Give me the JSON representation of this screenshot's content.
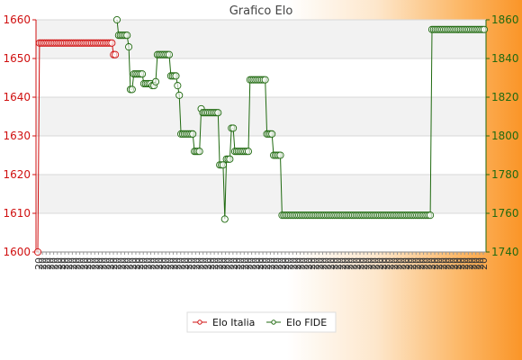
{
  "chart_data": {
    "type": "line",
    "title": "Grafico Elo",
    "xlabel": "",
    "ylabel": "",
    "left_axis": {
      "min": 1600,
      "max": 1660,
      "ticks": [
        1600,
        1610,
        1620,
        1630,
        1640,
        1650,
        1660
      ],
      "color": "#d01010"
    },
    "right_axis": {
      "min": 1740,
      "max": 1860,
      "ticks": [
        1740,
        1760,
        1780,
        1800,
        1820,
        1840,
        1860
      ],
      "color": "#206a10"
    },
    "x_count": 120,
    "x_label_prefix": "20",
    "grid": true,
    "legend": "bottom-center",
    "series": [
      {
        "name": "Elo Italia",
        "axis": "left",
        "color": "#d01010",
        "points": [
          [
            0,
            1600
          ],
          [
            1,
            1654
          ],
          [
            2,
            1654
          ],
          [
            3,
            1654
          ],
          [
            4,
            1654
          ],
          [
            5,
            1654
          ],
          [
            6,
            1654
          ],
          [
            7,
            1654
          ],
          [
            8,
            1654
          ],
          [
            9,
            1654
          ],
          [
            10,
            1654
          ],
          [
            11,
            1654
          ],
          [
            12,
            1654
          ],
          [
            13,
            1654
          ],
          [
            14,
            1654
          ],
          [
            15,
            1654
          ],
          [
            16,
            1654
          ],
          [
            17,
            1654
          ],
          [
            18,
            1654
          ],
          [
            19,
            1654
          ],
          [
            20,
            1654
          ],
          [
            21,
            1654
          ],
          [
            22,
            1654
          ],
          [
            23,
            1654
          ],
          [
            24,
            1654
          ],
          [
            25,
            1654
          ],
          [
            26,
            1654
          ],
          [
            27,
            1654
          ],
          [
            28,
            1654
          ],
          [
            29,
            1654
          ],
          [
            30,
            1654
          ],
          [
            31,
            1654
          ],
          [
            32,
            1654
          ],
          [
            33,
            1654
          ],
          [
            34,
            1654
          ],
          [
            35,
            1654
          ],
          [
            36,
            1654
          ],
          [
            37,
            1654
          ],
          [
            38,
            1654
          ],
          [
            39,
            1654
          ],
          [
            40,
            1654
          ],
          [
            41,
            1654
          ],
          [
            42,
            1654
          ],
          [
            43,
            1654
          ],
          [
            44,
            1654
          ],
          [
            45,
            1651
          ],
          [
            46,
            1651
          ]
        ]
      },
      {
        "name": "Elo FIDE",
        "axis": "right",
        "color": "#206a10",
        "points": [
          [
            47,
            1860
          ],
          [
            48,
            1852
          ],
          [
            49,
            1852
          ],
          [
            50,
            1852
          ],
          [
            51,
            1852
          ],
          [
            52,
            1852
          ],
          [
            53,
            1852
          ],
          [
            54,
            1846
          ],
          [
            55,
            1824
          ],
          [
            56,
            1824
          ],
          [
            57,
            1832
          ],
          [
            58,
            1832
          ],
          [
            59,
            1832
          ],
          [
            60,
            1832
          ],
          [
            61,
            1832
          ],
          [
            62,
            1832
          ],
          [
            63,
            1827
          ],
          [
            64,
            1827
          ],
          [
            65,
            1827
          ],
          [
            66,
            1827
          ],
          [
            67,
            1827
          ],
          [
            68,
            1826
          ],
          [
            69,
            1826
          ],
          [
            70,
            1828
          ],
          [
            71,
            1842
          ],
          [
            72,
            1842
          ],
          [
            73,
            1842
          ],
          [
            74,
            1842
          ],
          [
            75,
            1842
          ],
          [
            76,
            1842
          ],
          [
            77,
            1842
          ],
          [
            78,
            1842
          ],
          [
            79,
            1831
          ],
          [
            80,
            1831
          ],
          [
            81,
            1831
          ],
          [
            82,
            1831
          ],
          [
            83,
            1826
          ],
          [
            84,
            1821
          ],
          [
            85,
            1801
          ],
          [
            86,
            1801
          ],
          [
            87,
            1801
          ],
          [
            88,
            1801
          ],
          [
            89,
            1801
          ],
          [
            90,
            1801
          ],
          [
            91,
            1801
          ],
          [
            92,
            1801
          ],
          [
            93,
            1792
          ],
          [
            94,
            1792
          ],
          [
            95,
            1792
          ],
          [
            96,
            1792
          ],
          [
            97,
            1814
          ],
          [
            98,
            1812
          ],
          [
            99,
            1812
          ],
          [
            100,
            1812
          ],
          [
            101,
            1812
          ],
          [
            102,
            1812
          ],
          [
            103,
            1812
          ],
          [
            104,
            1812
          ],
          [
            105,
            1812
          ],
          [
            106,
            1812
          ],
          [
            107,
            1812
          ],
          [
            108,
            1785
          ],
          [
            109,
            1785
          ],
          [
            110,
            1785
          ],
          [
            111,
            1757
          ],
          [
            112,
            1788
          ],
          [
            113,
            1788
          ],
          [
            114,
            1788
          ],
          [
            115,
            1804
          ],
          [
            116,
            1804
          ],
          [
            117,
            1792
          ],
          [
            118,
            1792
          ],
          [
            119,
            1792
          ],
          [
            120,
            1792
          ],
          [
            121,
            1792
          ],
          [
            122,
            1792
          ],
          [
            123,
            1792
          ],
          [
            124,
            1792
          ],
          [
            125,
            1792
          ],
          [
            126,
            1829
          ],
          [
            127,
            1829
          ],
          [
            128,
            1829
          ],
          [
            129,
            1829
          ],
          [
            130,
            1829
          ],
          [
            131,
            1829
          ],
          [
            132,
            1829
          ],
          [
            133,
            1829
          ],
          [
            134,
            1829
          ],
          [
            135,
            1829
          ],
          [
            136,
            1801
          ],
          [
            137,
            1801
          ],
          [
            138,
            1801
          ],
          [
            139,
            1801
          ],
          [
            140,
            1790
          ],
          [
            141,
            1790
          ],
          [
            142,
            1790
          ],
          [
            143,
            1790
          ],
          [
            144,
            1790
          ],
          [
            145,
            1759
          ],
          [
            146,
            1759
          ],
          [
            147,
            1759
          ],
          [
            148,
            1759
          ],
          [
            149,
            1759
          ],
          [
            150,
            1759
          ],
          [
            151,
            1759
          ],
          [
            152,
            1759
          ],
          [
            153,
            1759
          ],
          [
            154,
            1759
          ],
          [
            155,
            1759
          ],
          [
            156,
            1759
          ],
          [
            157,
            1759
          ],
          [
            158,
            1759
          ],
          [
            159,
            1759
          ],
          [
            160,
            1759
          ],
          [
            161,
            1759
          ],
          [
            162,
            1759
          ],
          [
            163,
            1759
          ],
          [
            164,
            1759
          ],
          [
            165,
            1759
          ],
          [
            166,
            1759
          ],
          [
            167,
            1759
          ],
          [
            168,
            1759
          ],
          [
            169,
            1759
          ],
          [
            170,
            1759
          ],
          [
            171,
            1759
          ],
          [
            172,
            1759
          ],
          [
            173,
            1759
          ],
          [
            174,
            1759
          ],
          [
            175,
            1759
          ],
          [
            176,
            1759
          ],
          [
            177,
            1759
          ],
          [
            178,
            1759
          ],
          [
            179,
            1759
          ],
          [
            180,
            1759
          ],
          [
            181,
            1759
          ],
          [
            182,
            1759
          ],
          [
            183,
            1759
          ],
          [
            184,
            1759
          ],
          [
            185,
            1759
          ],
          [
            186,
            1759
          ],
          [
            187,
            1759
          ],
          [
            188,
            1759
          ],
          [
            189,
            1759
          ],
          [
            190,
            1759
          ],
          [
            191,
            1759
          ],
          [
            192,
            1759
          ],
          [
            193,
            1759
          ],
          [
            194,
            1759
          ],
          [
            195,
            1759
          ],
          [
            196,
            1759
          ],
          [
            197,
            1759
          ],
          [
            198,
            1759
          ],
          [
            199,
            1759
          ],
          [
            200,
            1759
          ],
          [
            201,
            1759
          ],
          [
            202,
            1759
          ],
          [
            203,
            1759
          ],
          [
            204,
            1759
          ],
          [
            205,
            1759
          ],
          [
            206,
            1759
          ],
          [
            207,
            1759
          ],
          [
            208,
            1759
          ],
          [
            209,
            1759
          ],
          [
            210,
            1759
          ],
          [
            211,
            1759
          ],
          [
            212,
            1759
          ],
          [
            213,
            1759
          ],
          [
            214,
            1759
          ],
          [
            215,
            1759
          ],
          [
            216,
            1759
          ],
          [
            217,
            1759
          ],
          [
            218,
            1759
          ],
          [
            219,
            1759
          ],
          [
            220,
            1759
          ],
          [
            221,
            1759
          ],
          [
            222,
            1759
          ],
          [
            223,
            1759
          ],
          [
            224,
            1759
          ],
          [
            225,
            1759
          ],
          [
            226,
            1759
          ],
          [
            227,
            1759
          ],
          [
            228,
            1759
          ],
          [
            229,
            1759
          ],
          [
            230,
            1759
          ],
          [
            231,
            1759
          ],
          [
            232,
            1759
          ],
          [
            233,
            1759
          ],
          [
            234,
            1855
          ],
          [
            235,
            1855
          ],
          [
            236,
            1855
          ],
          [
            237,
            1855
          ],
          [
            238,
            1855
          ],
          [
            239,
            1855
          ],
          [
            240,
            1855
          ],
          [
            241,
            1855
          ],
          [
            242,
            1855
          ],
          [
            243,
            1855
          ],
          [
            244,
            1855
          ],
          [
            245,
            1855
          ],
          [
            246,
            1855
          ],
          [
            247,
            1855
          ],
          [
            248,
            1855
          ],
          [
            249,
            1855
          ],
          [
            250,
            1855
          ],
          [
            251,
            1855
          ],
          [
            252,
            1855
          ],
          [
            253,
            1855
          ],
          [
            254,
            1855
          ],
          [
            255,
            1855
          ],
          [
            256,
            1855
          ],
          [
            257,
            1855
          ],
          [
            258,
            1855
          ],
          [
            259,
            1855
          ],
          [
            260,
            1855
          ],
          [
            261,
            1855
          ],
          [
            262,
            1855
          ],
          [
            263,
            1855
          ],
          [
            264,
            1855
          ],
          [
            265,
            1855
          ]
        ]
      }
    ]
  },
  "legend": {
    "items": [
      {
        "label": "Elo Italia",
        "color": "#d01010"
      },
      {
        "label": "Elo FIDE",
        "color": "#206a10"
      }
    ]
  }
}
